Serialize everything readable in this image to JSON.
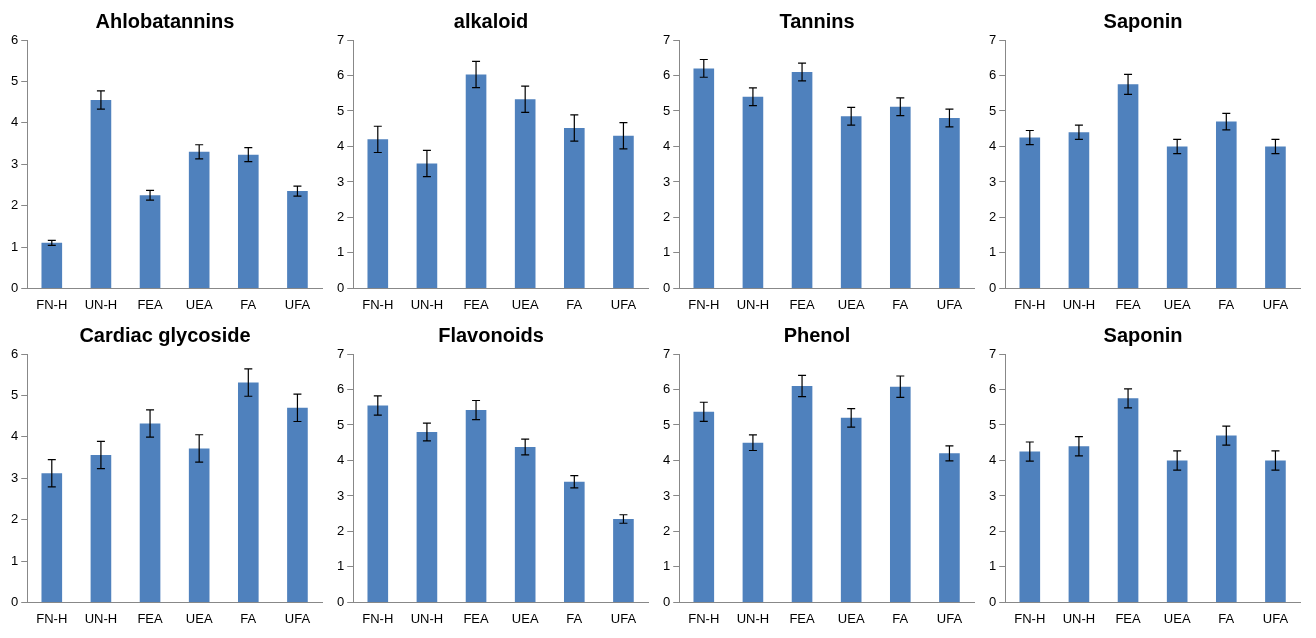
{
  "chart_data": [
    {
      "type": "bar",
      "title": "Ahlobatannins",
      "categories": [
        "FN-H",
        "UN-H",
        "FEA",
        "UEA",
        "FA",
        "UFA"
      ],
      "values": [
        1.1,
        4.55,
        2.25,
        3.3,
        3.23,
        2.35
      ],
      "errors": [
        0.06,
        0.22,
        0.12,
        0.17,
        0.17,
        0.12
      ],
      "color": "#4f81bd",
      "ylim": [
        0,
        6
      ],
      "yticks": [
        0,
        1,
        2,
        3,
        4,
        5,
        6
      ],
      "grid": false
    },
    {
      "type": "bar",
      "title": "alkaloid",
      "categories": [
        "FN-H",
        "UN-H",
        "FEA",
        "UEA",
        "FA",
        "UFA"
      ],
      "values": [
        4.2,
        3.52,
        6.03,
        5.33,
        4.52,
        4.3
      ],
      "errors": [
        0.37,
        0.37,
        0.37,
        0.37,
        0.37,
        0.37
      ],
      "color": "#4f81bd",
      "ylim": [
        0,
        7
      ],
      "yticks": [
        0,
        1,
        2,
        3,
        4,
        5,
        6,
        7
      ],
      "grid": false
    },
    {
      "type": "bar",
      "title": "Tannins",
      "categories": [
        "FN-H",
        "UN-H",
        "FEA",
        "UEA",
        "FA",
        "UFA"
      ],
      "values": [
        6.2,
        5.4,
        6.1,
        4.85,
        5.12,
        4.8
      ],
      "errors": [
        0.25,
        0.25,
        0.25,
        0.25,
        0.25,
        0.25
      ],
      "color": "#4f81bd",
      "ylim": [
        0,
        7
      ],
      "yticks": [
        0,
        1,
        2,
        3,
        4,
        5,
        6,
        7
      ],
      "grid": false
    },
    {
      "type": "bar",
      "title": "Saponin",
      "categories": [
        "FN-H",
        "UN-H",
        "FEA",
        "UEA",
        "FA",
        "UFA"
      ],
      "values": [
        4.25,
        4.4,
        5.75,
        4.0,
        4.7,
        4.0
      ],
      "errors": [
        0.2,
        0.2,
        0.28,
        0.2,
        0.23,
        0.2
      ],
      "color": "#4f81bd",
      "ylim": [
        0,
        7
      ],
      "yticks": [
        0,
        1,
        2,
        3,
        4,
        5,
        6,
        7
      ],
      "grid": false
    },
    {
      "type": "bar",
      "title": "Cardiac glycoside",
      "categories": [
        "FN-H",
        "UN-H",
        "FEA",
        "UEA",
        "FA",
        "UFA"
      ],
      "values": [
        3.12,
        3.56,
        4.32,
        3.72,
        5.31,
        4.7
      ],
      "errors": [
        0.33,
        0.33,
        0.33,
        0.33,
        0.33,
        0.33
      ],
      "color": "#4f81bd",
      "ylim": [
        0,
        6
      ],
      "yticks": [
        0,
        1,
        2,
        3,
        4,
        5,
        6
      ],
      "grid": false
    },
    {
      "type": "bar",
      "title": "Flavonoids",
      "categories": [
        "FN-H",
        "UN-H",
        "FEA",
        "UEA",
        "FA",
        "UFA"
      ],
      "values": [
        5.55,
        4.8,
        5.42,
        4.38,
        3.4,
        2.35
      ],
      "errors": [
        0.27,
        0.25,
        0.27,
        0.22,
        0.17,
        0.12
      ],
      "color": "#4f81bd",
      "ylim": [
        0,
        7
      ],
      "yticks": [
        0,
        1,
        2,
        3,
        4,
        5,
        6,
        7
      ],
      "grid": false
    },
    {
      "type": "bar",
      "title": "Phenol",
      "categories": [
        "FN-H",
        "UN-H",
        "FEA",
        "UEA",
        "FA",
        "UFA"
      ],
      "values": [
        5.37,
        4.5,
        6.1,
        5.2,
        6.08,
        4.2
      ],
      "errors": [
        0.27,
        0.22,
        0.3,
        0.26,
        0.3,
        0.21
      ],
      "color": "#4f81bd",
      "ylim": [
        0,
        7
      ],
      "yticks": [
        0,
        1,
        2,
        3,
        4,
        5,
        6,
        7
      ],
      "grid": false
    },
    {
      "type": "bar",
      "title": "Saponin",
      "categories": [
        "FN-H",
        "UN-H",
        "FEA",
        "UEA",
        "FA",
        "UFA"
      ],
      "values": [
        4.25,
        4.4,
        5.75,
        4.0,
        4.7,
        4.0
      ],
      "errors": [
        0.27,
        0.27,
        0.27,
        0.27,
        0.27,
        0.27
      ],
      "color": "#4f81bd",
      "ylim": [
        0,
        7
      ],
      "yticks": [
        0,
        1,
        2,
        3,
        4,
        5,
        6,
        7
      ],
      "grid": false
    }
  ]
}
